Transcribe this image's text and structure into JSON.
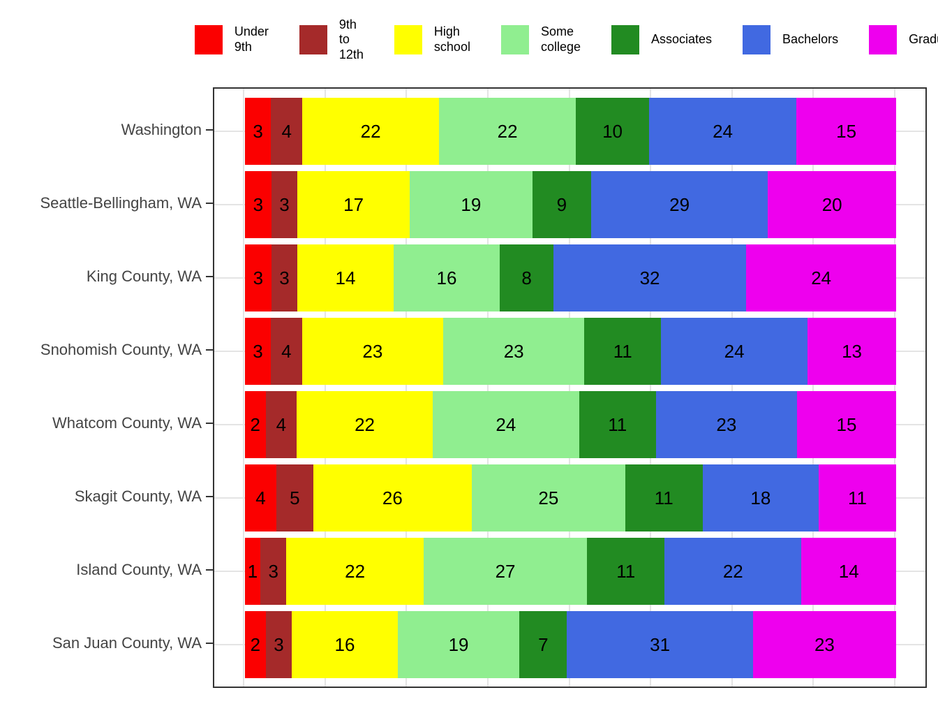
{
  "chart_data": {
    "type": "bar",
    "stacked": true,
    "orientation": "horizontal",
    "unit": "percent",
    "title": "",
    "xlabel": "",
    "ylabel": "",
    "xlim": [
      0,
      100
    ],
    "gridline_step_pct": 12.5,
    "legend_position": "top",
    "categories": [
      "Washington",
      "Seattle-Bellingham, WA",
      "King County, WA",
      "Snohomish County, WA",
      "Whatcom County, WA",
      "Skagit County, WA",
      "Island County, WA",
      "San Juan County, WA"
    ],
    "series": [
      {
        "name": "Under 9th",
        "legend_display": "Under\n9th",
        "color": "#fb0000",
        "values": [
          3,
          3,
          3,
          3,
          2,
          4,
          1,
          2
        ]
      },
      {
        "name": "9th to 12th",
        "legend_display": "9th to\n12th",
        "color": "#a52a2a",
        "values": [
          4,
          3,
          3,
          4,
          4,
          5,
          3,
          3
        ]
      },
      {
        "name": "High school",
        "legend_display": "High\nschool",
        "color": "#ffff00",
        "values": [
          22,
          17,
          14,
          23,
          22,
          26,
          22,
          16
        ]
      },
      {
        "name": "Some college",
        "legend_display": "Some\ncollege",
        "color": "#90ee90",
        "values": [
          22,
          19,
          16,
          23,
          24,
          25,
          27,
          19
        ]
      },
      {
        "name": "Associates",
        "legend_display": "Associates",
        "color": "#228b22",
        "values": [
          10,
          9,
          8,
          11,
          11,
          11,
          11,
          7
        ]
      },
      {
        "name": "Bachelors",
        "legend_display": "Bachelors",
        "color": "#4169e1",
        "values": [
          24,
          29,
          32,
          24,
          23,
          18,
          22,
          31
        ]
      },
      {
        "name": "Graduate",
        "legend_display": "Graduate",
        "color": "#ee00ee",
        "values": [
          15,
          20,
          24,
          13,
          15,
          11,
          14,
          23
        ]
      }
    ],
    "colors": {
      "grid": "#e4e4e4",
      "panel_border": "#333333",
      "axis_text": "#444444",
      "bar_value_text": "#000000"
    }
  }
}
